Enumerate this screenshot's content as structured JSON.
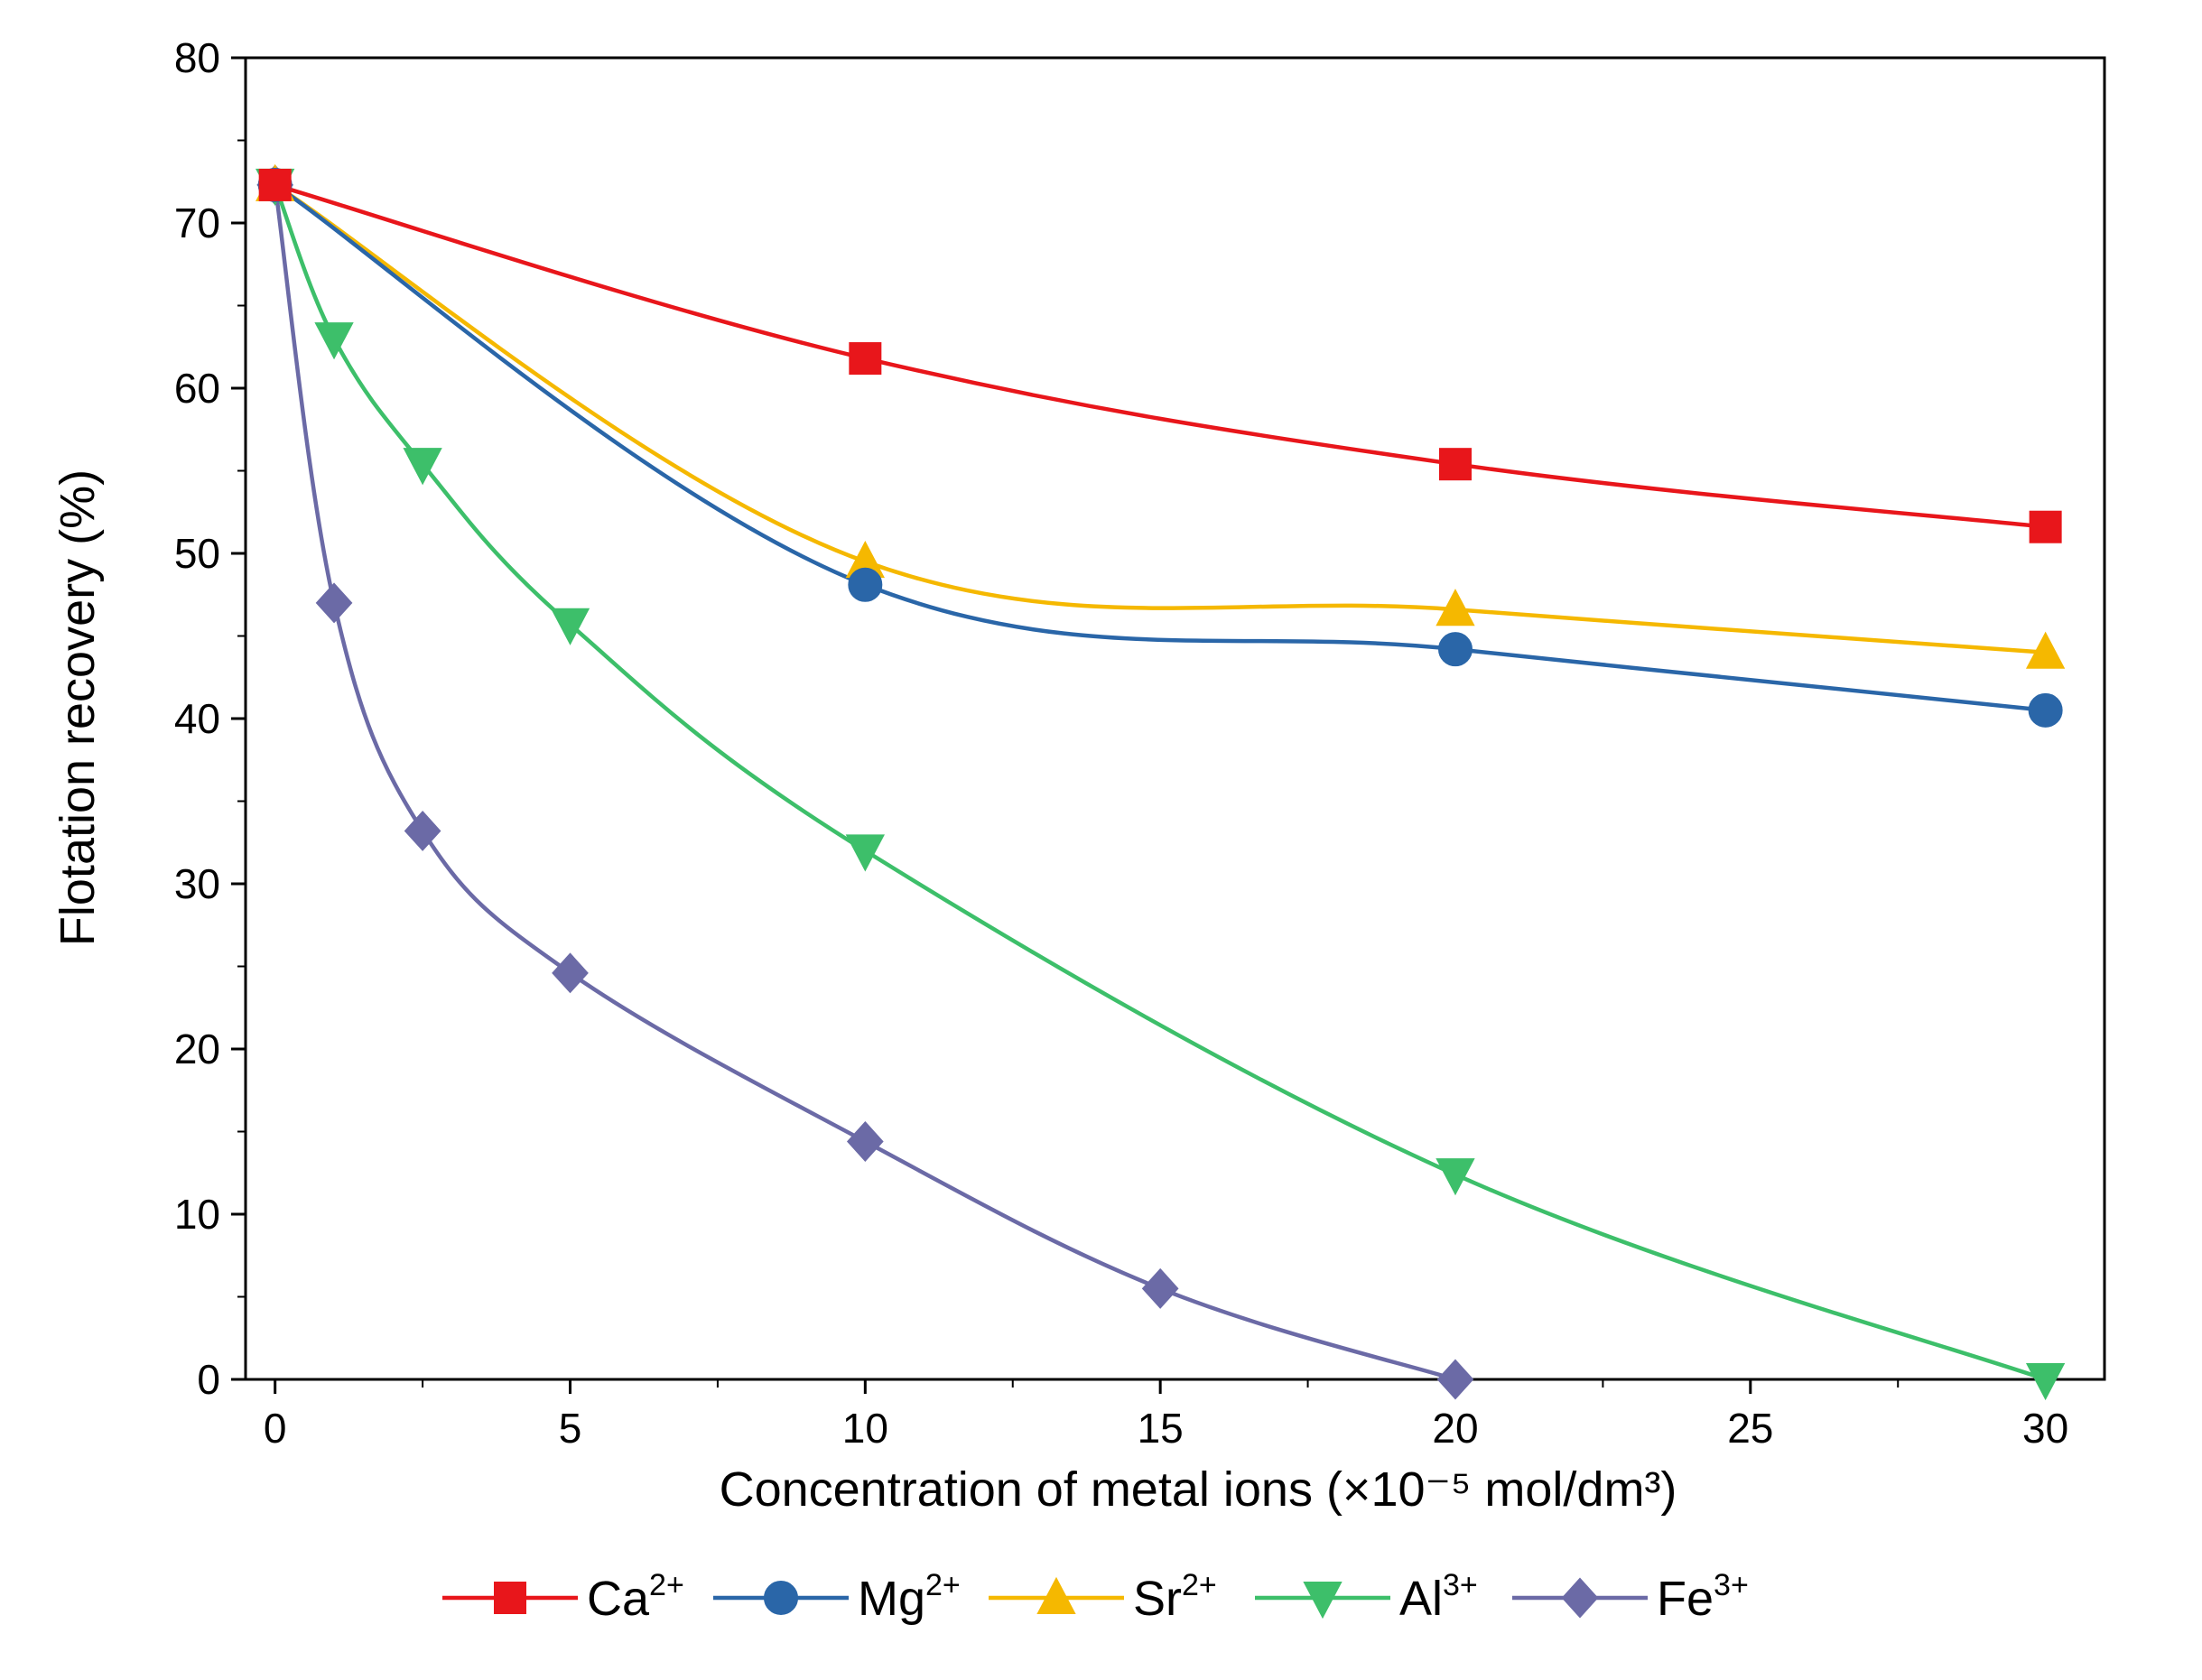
{
  "chart_data": {
    "type": "line",
    "title": "",
    "xlabel": "Concentration of metal ions (×10⁻⁵ mol/dm³)",
    "ylabel": "Flotation recovery (%)",
    "xlim": [
      -0.5,
      31
    ],
    "ylim": [
      0,
      80
    ],
    "x_ticks": [
      0,
      5,
      10,
      15,
      20,
      25,
      30
    ],
    "y_ticks": [
      0,
      10,
      20,
      30,
      40,
      50,
      60,
      70,
      80
    ],
    "grid": false,
    "legend_position": "bottom",
    "series": [
      {
        "name": "Ca2+",
        "label_base": "Ca",
        "label_sup": "2+",
        "color": "#e8161b",
        "marker": "square",
        "x": [
          0,
          10,
          20,
          30
        ],
        "y": [
          72.3,
          61.8,
          55.4,
          51.6
        ]
      },
      {
        "name": "Mg2+",
        "label_base": "Mg",
        "label_sup": "2+",
        "color": "#2a66a8",
        "marker": "circle",
        "x": [
          0,
          10,
          20,
          30
        ],
        "y": [
          72.3,
          48.1,
          44.2,
          40.5
        ]
      },
      {
        "name": "Sr2+",
        "label_base": "Sr",
        "label_sup": "2+",
        "color": "#f5b800",
        "marker": "triangle-up",
        "x": [
          0,
          10,
          20,
          30
        ],
        "y": [
          72.3,
          49.5,
          46.6,
          44.0
        ]
      },
      {
        "name": "Al3+",
        "label_base": "Al",
        "label_sup": "3+",
        "color": "#3dbf6a",
        "marker": "triangle-down",
        "x": [
          0,
          1,
          2.5,
          5,
          10,
          20,
          30
        ],
        "y": [
          72.3,
          63.0,
          55.4,
          45.7,
          32.0,
          12.4,
          0.0
        ]
      },
      {
        "name": "Fe3+",
        "label_base": "Fe",
        "label_sup": "3+",
        "color": "#6b6aa6",
        "marker": "diamond",
        "x": [
          0,
          1,
          2.5,
          5,
          10,
          15,
          20
        ],
        "y": [
          72.3,
          47.0,
          33.2,
          24.6,
          14.4,
          5.5,
          0.0
        ]
      }
    ]
  }
}
